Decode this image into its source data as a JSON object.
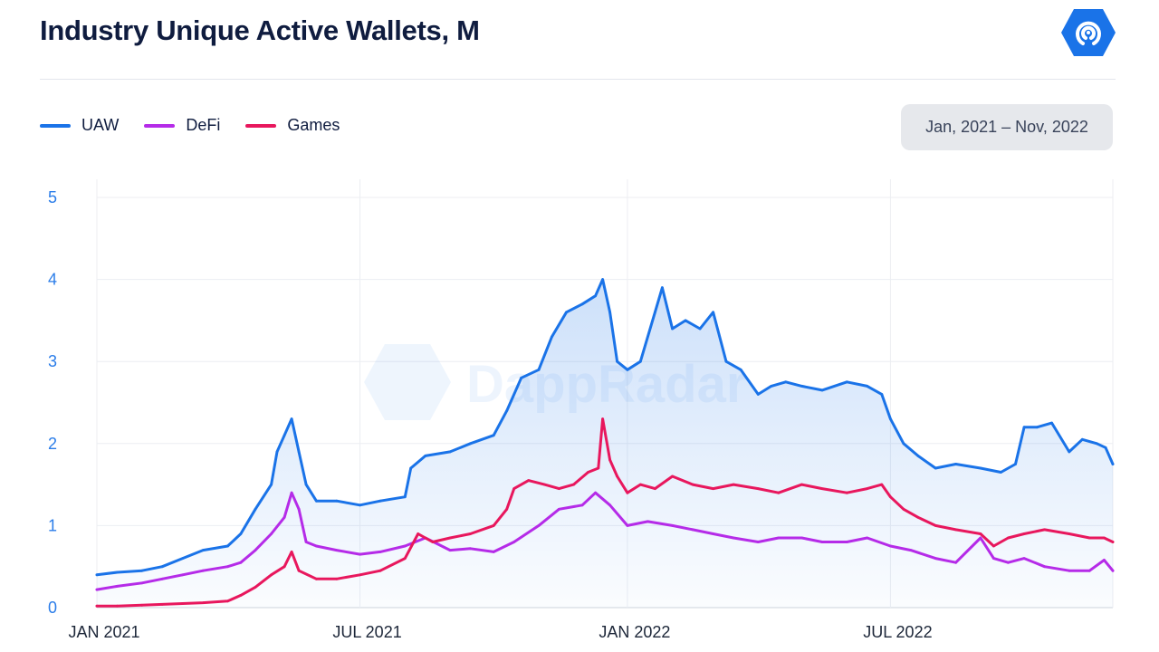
{
  "header": {
    "title": "Industry Unique Active Wallets, M",
    "logo_icon": "dappradar-logo-icon"
  },
  "date_range": {
    "label": "Jan, 2021 – Nov, 2022"
  },
  "watermark": {
    "text": "DappRadar"
  },
  "colors": {
    "uaw": "#1a73e8",
    "defi": "#b52be8",
    "games": "#e8175d",
    "axis_y": "#2b7de9"
  },
  "chart_data": {
    "type": "line",
    "title": "Industry Unique Active Wallets, M",
    "xlabel": "",
    "ylabel": "",
    "ylim": [
      0,
      5
    ],
    "xlim": [
      "2021-01-01",
      "2022-12-01"
    ],
    "grid": true,
    "legend_position": "top-left",
    "y_ticks": [
      "0",
      "1",
      "2",
      "3",
      "4",
      "5"
    ],
    "x_ticks": [
      {
        "label": "JAN 2021",
        "date": "2021-01-01"
      },
      {
        "label": "JUL 2021",
        "date": "2021-07-01"
      },
      {
        "label": "JAN 2022",
        "date": "2022-01-01"
      },
      {
        "label": "JUL 2022",
        "date": "2022-07-01"
      }
    ],
    "series": [
      {
        "name": "UAW",
        "color": "#1a73e8",
        "area": true,
        "points": [
          [
            "2021-01-01",
            0.4
          ],
          [
            "2021-01-15",
            0.43
          ],
          [
            "2021-02-01",
            0.45
          ],
          [
            "2021-02-15",
            0.5
          ],
          [
            "2021-03-01",
            0.6
          ],
          [
            "2021-03-15",
            0.7
          ],
          [
            "2021-04-01",
            0.75
          ],
          [
            "2021-04-10",
            0.9
          ],
          [
            "2021-04-20",
            1.2
          ],
          [
            "2021-05-01",
            1.5
          ],
          [
            "2021-05-05",
            1.9
          ],
          [
            "2021-05-10",
            2.1
          ],
          [
            "2021-05-15",
            2.3
          ],
          [
            "2021-05-20",
            1.9
          ],
          [
            "2021-05-25",
            1.5
          ],
          [
            "2021-06-01",
            1.3
          ],
          [
            "2021-06-15",
            1.3
          ],
          [
            "2021-07-01",
            1.25
          ],
          [
            "2021-07-15",
            1.3
          ],
          [
            "2021-08-01",
            1.35
          ],
          [
            "2021-08-05",
            1.7
          ],
          [
            "2021-08-15",
            1.85
          ],
          [
            "2021-09-01",
            1.9
          ],
          [
            "2021-09-15",
            2.0
          ],
          [
            "2021-10-01",
            2.1
          ],
          [
            "2021-10-10",
            2.4
          ],
          [
            "2021-10-20",
            2.8
          ],
          [
            "2021-11-01",
            2.9
          ],
          [
            "2021-11-10",
            3.3
          ],
          [
            "2021-11-20",
            3.6
          ],
          [
            "2021-12-01",
            3.7
          ],
          [
            "2021-12-10",
            3.8
          ],
          [
            "2021-12-15",
            4.0
          ],
          [
            "2021-12-20",
            3.6
          ],
          [
            "2021-12-25",
            3.0
          ],
          [
            "2022-01-01",
            2.9
          ],
          [
            "2022-01-10",
            3.0
          ],
          [
            "2022-01-20",
            3.6
          ],
          [
            "2022-01-25",
            3.9
          ],
          [
            "2022-02-01",
            3.4
          ],
          [
            "2022-02-10",
            3.5
          ],
          [
            "2022-02-20",
            3.4
          ],
          [
            "2022-03-01",
            3.6
          ],
          [
            "2022-03-10",
            3.0
          ],
          [
            "2022-03-20",
            2.9
          ],
          [
            "2022-04-01",
            2.6
          ],
          [
            "2022-04-10",
            2.7
          ],
          [
            "2022-04-20",
            2.75
          ],
          [
            "2022-05-01",
            2.7
          ],
          [
            "2022-05-15",
            2.65
          ],
          [
            "2022-06-01",
            2.75
          ],
          [
            "2022-06-15",
            2.7
          ],
          [
            "2022-06-25",
            2.6
          ],
          [
            "2022-07-01",
            2.3
          ],
          [
            "2022-07-10",
            2.0
          ],
          [
            "2022-07-20",
            1.85
          ],
          [
            "2022-08-01",
            1.7
          ],
          [
            "2022-08-15",
            1.75
          ],
          [
            "2022-09-01",
            1.7
          ],
          [
            "2022-09-15",
            1.65
          ],
          [
            "2022-09-25",
            1.75
          ],
          [
            "2022-10-01",
            2.2
          ],
          [
            "2022-10-10",
            2.2
          ],
          [
            "2022-10-20",
            2.25
          ],
          [
            "2022-11-01",
            1.9
          ],
          [
            "2022-11-10",
            2.05
          ],
          [
            "2022-11-20",
            2.0
          ],
          [
            "2022-11-26",
            1.95
          ],
          [
            "2022-12-01",
            1.75
          ]
        ]
      },
      {
        "name": "DeFi",
        "color": "#b52be8",
        "area": false,
        "points": [
          [
            "2021-01-01",
            0.22
          ],
          [
            "2021-01-15",
            0.26
          ],
          [
            "2021-02-01",
            0.3
          ],
          [
            "2021-02-15",
            0.35
          ],
          [
            "2021-03-01",
            0.4
          ],
          [
            "2021-03-15",
            0.45
          ],
          [
            "2021-04-01",
            0.5
          ],
          [
            "2021-04-10",
            0.55
          ],
          [
            "2021-04-20",
            0.7
          ],
          [
            "2021-05-01",
            0.9
          ],
          [
            "2021-05-10",
            1.1
          ],
          [
            "2021-05-15",
            1.4
          ],
          [
            "2021-05-20",
            1.2
          ],
          [
            "2021-05-25",
            0.8
          ],
          [
            "2021-06-01",
            0.75
          ],
          [
            "2021-06-15",
            0.7
          ],
          [
            "2021-07-01",
            0.65
          ],
          [
            "2021-07-15",
            0.68
          ],
          [
            "2021-08-01",
            0.75
          ],
          [
            "2021-08-15",
            0.85
          ],
          [
            "2021-09-01",
            0.7
          ],
          [
            "2021-09-15",
            0.72
          ],
          [
            "2021-10-01",
            0.68
          ],
          [
            "2021-10-15",
            0.8
          ],
          [
            "2021-11-01",
            1.0
          ],
          [
            "2021-11-15",
            1.2
          ],
          [
            "2021-12-01",
            1.25
          ],
          [
            "2021-12-10",
            1.4
          ],
          [
            "2021-12-20",
            1.25
          ],
          [
            "2022-01-01",
            1.0
          ],
          [
            "2022-01-15",
            1.05
          ],
          [
            "2022-02-01",
            1.0
          ],
          [
            "2022-02-15",
            0.95
          ],
          [
            "2022-03-01",
            0.9
          ],
          [
            "2022-03-15",
            0.85
          ],
          [
            "2022-04-01",
            0.8
          ],
          [
            "2022-04-15",
            0.85
          ],
          [
            "2022-05-01",
            0.85
          ],
          [
            "2022-05-15",
            0.8
          ],
          [
            "2022-06-01",
            0.8
          ],
          [
            "2022-06-15",
            0.85
          ],
          [
            "2022-07-01",
            0.75
          ],
          [
            "2022-07-15",
            0.7
          ],
          [
            "2022-08-01",
            0.6
          ],
          [
            "2022-08-15",
            0.55
          ],
          [
            "2022-09-01",
            0.85
          ],
          [
            "2022-09-10",
            0.6
          ],
          [
            "2022-09-20",
            0.55
          ],
          [
            "2022-10-01",
            0.6
          ],
          [
            "2022-10-15",
            0.5
          ],
          [
            "2022-11-01",
            0.45
          ],
          [
            "2022-11-15",
            0.45
          ],
          [
            "2022-11-25",
            0.58
          ],
          [
            "2022-12-01",
            0.45
          ]
        ]
      },
      {
        "name": "Games",
        "color": "#e8175d",
        "area": false,
        "points": [
          [
            "2021-01-01",
            0.02
          ],
          [
            "2021-01-15",
            0.02
          ],
          [
            "2021-02-01",
            0.03
          ],
          [
            "2021-02-15",
            0.04
          ],
          [
            "2021-03-01",
            0.05
          ],
          [
            "2021-03-15",
            0.06
          ],
          [
            "2021-04-01",
            0.08
          ],
          [
            "2021-04-10",
            0.15
          ],
          [
            "2021-04-20",
            0.25
          ],
          [
            "2021-05-01",
            0.4
          ],
          [
            "2021-05-10",
            0.5
          ],
          [
            "2021-05-15",
            0.68
          ],
          [
            "2021-05-20",
            0.45
          ],
          [
            "2021-06-01",
            0.35
          ],
          [
            "2021-06-15",
            0.35
          ],
          [
            "2021-07-01",
            0.4
          ],
          [
            "2021-07-15",
            0.45
          ],
          [
            "2021-08-01",
            0.6
          ],
          [
            "2021-08-10",
            0.9
          ],
          [
            "2021-08-20",
            0.8
          ],
          [
            "2021-09-01",
            0.85
          ],
          [
            "2021-09-15",
            0.9
          ],
          [
            "2021-10-01",
            1.0
          ],
          [
            "2021-10-10",
            1.2
          ],
          [
            "2021-10-15",
            1.45
          ],
          [
            "2021-10-25",
            1.55
          ],
          [
            "2021-11-05",
            1.5
          ],
          [
            "2021-11-15",
            1.45
          ],
          [
            "2021-11-25",
            1.5
          ],
          [
            "2021-12-05",
            1.65
          ],
          [
            "2021-12-12",
            1.7
          ],
          [
            "2021-12-15",
            2.3
          ],
          [
            "2021-12-20",
            1.8
          ],
          [
            "2021-12-25",
            1.6
          ],
          [
            "2022-01-01",
            1.4
          ],
          [
            "2022-01-10",
            1.5
          ],
          [
            "2022-01-20",
            1.45
          ],
          [
            "2022-02-01",
            1.6
          ],
          [
            "2022-02-15",
            1.5
          ],
          [
            "2022-03-01",
            1.45
          ],
          [
            "2022-03-15",
            1.5
          ],
          [
            "2022-04-01",
            1.45
          ],
          [
            "2022-04-15",
            1.4
          ],
          [
            "2022-05-01",
            1.5
          ],
          [
            "2022-05-15",
            1.45
          ],
          [
            "2022-06-01",
            1.4
          ],
          [
            "2022-06-15",
            1.45
          ],
          [
            "2022-06-25",
            1.5
          ],
          [
            "2022-07-01",
            1.35
          ],
          [
            "2022-07-10",
            1.2
          ],
          [
            "2022-07-20",
            1.1
          ],
          [
            "2022-08-01",
            1.0
          ],
          [
            "2022-08-15",
            0.95
          ],
          [
            "2022-09-01",
            0.9
          ],
          [
            "2022-09-10",
            0.75
          ],
          [
            "2022-09-20",
            0.85
          ],
          [
            "2022-10-01",
            0.9
          ],
          [
            "2022-10-15",
            0.95
          ],
          [
            "2022-11-01",
            0.9
          ],
          [
            "2022-11-15",
            0.85
          ],
          [
            "2022-11-25",
            0.85
          ],
          [
            "2022-12-01",
            0.8
          ]
        ]
      }
    ]
  }
}
